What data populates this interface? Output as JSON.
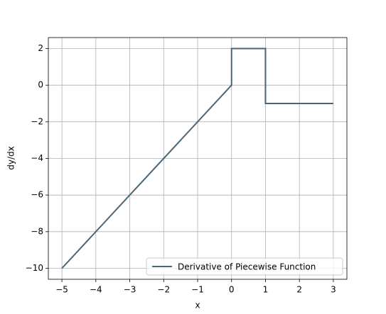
{
  "chart_data": {
    "type": "line",
    "xlabel": "x",
    "ylabel": "dy/dx",
    "x": [
      -5,
      0,
      0,
      1,
      1,
      3
    ],
    "series": [
      {
        "name": "Derivative of Piecewise Function",
        "color": "#4a6577",
        "values": [
          -10,
          0,
          2,
          2,
          -1,
          -1
        ]
      }
    ],
    "xlim": [
      -5.4,
      3.4
    ],
    "ylim": [
      -10.6,
      2.6
    ],
    "xticks": [
      {
        "value": -5,
        "label": "−5"
      },
      {
        "value": -4,
        "label": "−4"
      },
      {
        "value": -3,
        "label": "−3"
      },
      {
        "value": -2,
        "label": "−2"
      },
      {
        "value": -1,
        "label": "−1"
      },
      0,
      1,
      2,
      3
    ],
    "yticks": [
      {
        "value": -10,
        "label": "−10"
      },
      {
        "value": -8,
        "label": "−8"
      },
      {
        "value": -6,
        "label": "−6"
      },
      {
        "value": -4,
        "label": "−4"
      },
      {
        "value": -2,
        "label": "−2"
      },
      0,
      2
    ],
    "grid": true,
    "legend": "lower right"
  }
}
